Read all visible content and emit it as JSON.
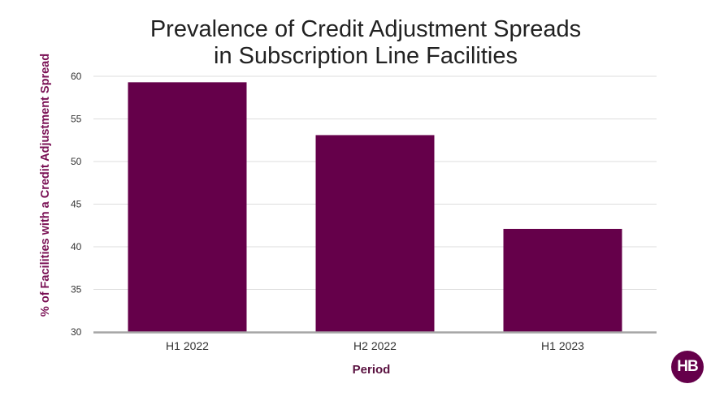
{
  "chart_data": {
    "type": "bar",
    "title": [
      "Prevalence of Credit Adjustment Spreads",
      "in Subscription Line Facilities"
    ],
    "xlabel": "Period",
    "ylabel": "% of Facilities with a Credit Adjustment Spread",
    "categories": [
      "H1 2022",
      "H2 2022",
      "H1 2023"
    ],
    "values": [
      59.3,
      53.1,
      42.1
    ],
    "ylim": [
      30,
      60
    ],
    "yticks": [
      "30",
      "35",
      "40",
      "45",
      "50",
      "55",
      "60"
    ],
    "grid": true,
    "legend": "none"
  },
  "colors": {
    "bar": "#65004a",
    "ylabel": "#7a1155",
    "xlabel": "#5a1240",
    "grid": "#dddddd",
    "baseline": "#a6a6a6",
    "logo_bg": "#65004a"
  },
  "logo": {
    "text": "HB"
  }
}
